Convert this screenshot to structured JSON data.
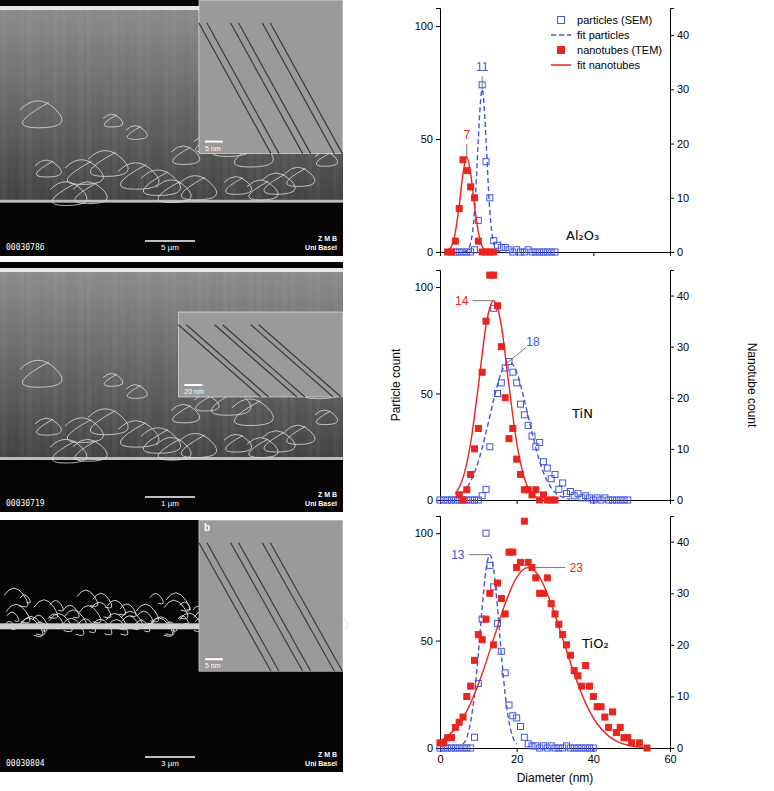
{
  "chart_data": [
    {
      "type": "scatter",
      "title": "Al₂O₃",
      "legend": "upper right",
      "tick_labels": "y",
      "xlim": [
        0,
        60
      ],
      "xticks": [
        0,
        20,
        40,
        60
      ],
      "ylim": [
        0,
        108
      ],
      "yticks": [
        0,
        50,
        100
      ],
      "y2lim": [
        0,
        45
      ],
      "y2ticks": [
        0,
        10,
        20,
        30,
        40
      ],
      "series": [
        {
          "name": "particles (SEM)",
          "type": "scatter",
          "marker": "open-square",
          "color": "#4455dd",
          "x": [
            4,
            5,
            6,
            7,
            8,
            9,
            10,
            11,
            12,
            13,
            14,
            15,
            16,
            17,
            18,
            19,
            20,
            21,
            22,
            23,
            24,
            25,
            26,
            27,
            28,
            29,
            30
          ],
          "values": [
            0,
            0,
            0,
            0,
            0,
            1,
            14,
            74,
            40,
            24,
            5,
            3,
            2,
            2,
            1,
            0,
            1,
            0,
            0,
            1,
            0,
            0,
            0,
            0,
            0,
            0,
            0
          ]
        },
        {
          "name": "fit particles",
          "type": "line",
          "line_style": "dashed",
          "color": "#4455dd",
          "x": [
            6,
            7,
            8,
            9,
            10,
            10.5,
            11,
            11.5,
            12,
            13,
            14,
            15,
            16
          ],
          "values": [
            0,
            0.5,
            4,
            18,
            50,
            65,
            72,
            65,
            50,
            18,
            4,
            0.5,
            0
          ]
        },
        {
          "name": "nanotubes (TEM)",
          "type": "scatter",
          "marker": "filled-square",
          "color": "#e8251f",
          "axis": "y2",
          "x": [
            2,
            3,
            4,
            5,
            6,
            7,
            8,
            9,
            10,
            11,
            12,
            13,
            14
          ],
          "values": [
            0,
            0,
            2,
            8,
            17,
            15,
            12,
            10,
            2,
            0,
            0,
            0,
            0
          ]
        },
        {
          "name": "fit nanotubes",
          "type": "line",
          "line_style": "solid",
          "color": "#e8251f",
          "axis": "y2",
          "x": [
            2,
            3,
            4,
            5,
            6,
            7,
            8,
            9,
            10,
            11,
            12
          ],
          "values": [
            0.2,
            1,
            3.7,
            8.5,
            14.5,
            17.5,
            14.5,
            8.5,
            3.7,
            1,
            0.2
          ]
        }
      ],
      "annotations": [
        {
          "text": "7",
          "x": 7,
          "y": 17.5,
          "axis": "y2",
          "color": "#e8251f"
        },
        {
          "text": "11",
          "x": 11,
          "y": 72,
          "color": "#4455dd"
        }
      ]
    },
    {
      "type": "scatter",
      "title": "TiN",
      "tick_labels": "y",
      "y_label": "Particle count",
      "y2_label": "Nanotube count",
      "xlim": [
        0,
        60
      ],
      "xticks": [
        0,
        20,
        40,
        60
      ],
      "ylim": [
        0,
        108
      ],
      "yticks": [
        0,
        50,
        100
      ],
      "y2lim": [
        0,
        45
      ],
      "y2ticks": [
        0,
        10,
        20,
        30,
        40
      ],
      "series": [
        {
          "type": "scatter",
          "marker": "open-square",
          "color": "#4455dd",
          "x": [
            0,
            1,
            2,
            3,
            4,
            5,
            6,
            7,
            8,
            9,
            10,
            11,
            12,
            13,
            14,
            15,
            16,
            17,
            18,
            19,
            20,
            21,
            22,
            23,
            24,
            25,
            26,
            27,
            28,
            29,
            30,
            31,
            32,
            33,
            34,
            35,
            36,
            37,
            38,
            39,
            40,
            41,
            42,
            43,
            44,
            45,
            46,
            47,
            48,
            49
          ],
          "values": [
            0,
            0,
            0,
            0,
            0,
            0,
            0,
            0,
            0,
            0,
            0,
            2,
            5,
            25,
            90,
            50,
            55,
            62,
            65,
            60,
            55,
            45,
            40,
            35,
            30,
            25,
            27,
            18,
            15,
            10,
            12,
            5,
            8,
            3,
            4,
            2,
            3,
            1,
            2,
            1,
            0,
            1,
            0,
            1,
            0,
            0,
            0,
            0,
            0,
            0
          ]
        },
        {
          "type": "line",
          "line_style": "dashed",
          "color": "#4455dd",
          "x": [
            4,
            6,
            8,
            10,
            12,
            14,
            16,
            18,
            20,
            22,
            24,
            26,
            28,
            30,
            32,
            34
          ],
          "values": [
            1.3,
            3.6,
            8.8,
            18,
            31.6,
            47,
            60,
            65,
            60,
            47,
            31.6,
            18,
            8.8,
            3.6,
            1.3,
            0.4
          ]
        },
        {
          "type": "scatter",
          "marker": "filled-square",
          "color": "#e8251f",
          "axis": "y2",
          "x": [
            5,
            6,
            7,
            8,
            9,
            10,
            11,
            12,
            13,
            14,
            15,
            16,
            17,
            18,
            19,
            20,
            21,
            22,
            23,
            24,
            25,
            26,
            27,
            28,
            29,
            30
          ],
          "values": [
            1,
            0,
            2,
            5,
            10,
            14,
            25,
            35,
            44,
            44,
            38,
            30,
            20,
            12,
            14,
            8,
            5,
            2,
            2,
            1,
            2,
            0,
            1,
            0,
            0,
            0
          ]
        },
        {
          "type": "line",
          "line_style": "solid",
          "color": "#e8251f",
          "axis": "y2",
          "x": [
            4,
            6,
            8,
            10,
            12,
            13,
            14,
            15,
            16,
            18,
            20,
            22,
            24,
            26
          ],
          "values": [
            1.2,
            4.3,
            11.2,
            22.3,
            34.1,
            37.6,
            39,
            37.6,
            34.1,
            22.3,
            11.2,
            4.3,
            1.2,
            0.3
          ]
        }
      ],
      "annotations": [
        {
          "text": "14",
          "x": 14,
          "y": 39,
          "axis": "y2",
          "color": "#e8251f"
        },
        {
          "text": "18",
          "x": 18,
          "y": 65,
          "color": "#4455dd"
        }
      ]
    },
    {
      "type": "scatter",
      "title": "TiO₂",
      "x_label": "Diameter (nm)",
      "xlim": [
        0,
        60
      ],
      "xticks": [
        0,
        20,
        40,
        60
      ],
      "ylim": [
        0,
        108
      ],
      "yticks": [
        0,
        50,
        100
      ],
      "y2lim": [
        0,
        45
      ],
      "y2ticks": [
        0,
        10,
        20,
        30,
        40
      ],
      "series": [
        {
          "type": "scatter",
          "marker": "open-square",
          "color": "#4455dd",
          "x": [
            0,
            1,
            2,
            3,
            4,
            5,
            6,
            7,
            8,
            9,
            10,
            11,
            12,
            13,
            14,
            15,
            16,
            17,
            18,
            19,
            20,
            21,
            22,
            23,
            24,
            25,
            26,
            27,
            28,
            29,
            30,
            31,
            32,
            33,
            34,
            35,
            36,
            37,
            38,
            39,
            40
          ],
          "values": [
            0,
            0,
            0,
            0,
            0,
            0,
            0,
            0,
            0,
            5,
            30,
            60,
            100,
            85,
            75,
            58,
            45,
            35,
            20,
            15,
            14,
            10,
            5,
            2,
            1,
            1,
            0,
            1,
            0,
            1,
            0,
            0,
            0,
            1,
            0,
            0,
            0,
            0,
            0,
            0,
            0
          ]
        },
        {
          "type": "line",
          "line_style": "dashed",
          "color": "#4455dd",
          "x": [
            6,
            7,
            8,
            9,
            10,
            11,
            12,
            13,
            14,
            15,
            16,
            17,
            18,
            19,
            20
          ],
          "values": [
            1.8,
            5,
            12.2,
            25,
            43.8,
            65.3,
            83,
            90,
            83,
            65.3,
            43.8,
            25,
            12.2,
            5,
            1.8
          ]
        },
        {
          "type": "scatter",
          "marker": "filled-square",
          "color": "#e8251f",
          "axis": "y2",
          "x": [
            0,
            1,
            2,
            3,
            4,
            5,
            6,
            7,
            8,
            9,
            10,
            11,
            12,
            13,
            14,
            15,
            16,
            17,
            18,
            19,
            20,
            21,
            22,
            23,
            24,
            25,
            26,
            27,
            28,
            29,
            30,
            31,
            32,
            33,
            34,
            35,
            36,
            37,
            38,
            39,
            40,
            41,
            42,
            43,
            44,
            45,
            46,
            47,
            48,
            49,
            50,
            52,
            54
          ],
          "values": [
            1,
            1,
            2,
            2,
            4,
            5,
            6,
            10,
            12,
            17,
            22,
            21,
            25,
            30,
            20,
            32,
            29,
            26,
            38,
            38,
            35,
            36,
            44,
            36,
            35,
            33,
            30,
            30,
            33,
            28,
            26,
            24,
            22,
            20,
            18,
            15,
            14,
            12,
            16,
            12,
            10,
            8,
            8,
            6,
            4,
            7,
            3,
            4,
            2,
            2,
            1,
            1,
            0
          ]
        },
        {
          "type": "line",
          "line_style": "solid",
          "color": "#e8251f",
          "axis": "y2",
          "x": [
            0,
            2,
            5,
            8,
            11,
            14,
            17,
            20,
            23,
            26,
            29,
            32,
            35,
            38,
            41,
            44,
            47,
            50,
            53
          ],
          "values": [
            1.3,
            2.3,
            4.7,
            8.7,
            14.4,
            21.2,
            28,
            33.1,
            35,
            33.1,
            28,
            21.2,
            14.4,
            8.7,
            4.7,
            2.3,
            1,
            0.4,
            0.15
          ]
        }
      ],
      "annotations": [
        {
          "text": "13",
          "x": 13,
          "y": 90,
          "color": "#4455dd"
        },
        {
          "text": "23",
          "x": 23,
          "y": 35,
          "axis": "y2",
          "color": "#e8251f"
        }
      ]
    }
  ],
  "micrographs": [
    {
      "code": "00030786",
      "scale_bar": "5 µm",
      "inset_scale_bar": "5 nm",
      "institute": [
        "Z M B",
        "Uni Basel"
      ]
    },
    {
      "code": "00030719",
      "scale_bar": "1 µm",
      "inset_scale_bar": "20 nm",
      "institute": [
        "Z M B",
        "Uni Basel"
      ]
    },
    {
      "code": "00030804",
      "scale_bar": "3 µm",
      "inset_scale_bar": "5 nm",
      "inset_letter": "b",
      "institute": [
        "Z M B",
        "Uni Basel"
      ]
    }
  ]
}
